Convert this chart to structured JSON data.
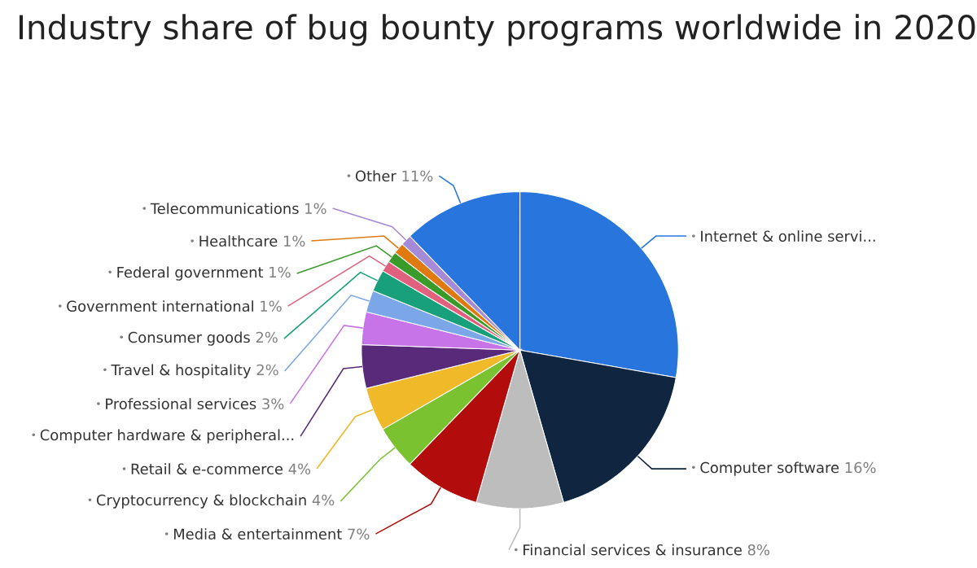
{
  "chart_data": {
    "type": "pie",
    "title": "Industry share of bug bounty programs worldwide in 2020",
    "categories": [
      "Internet & online servi...",
      "Computer software",
      "Financial services & insurance",
      "Media & entertainment",
      "Cryptocurrency & blockchain",
      "Retail & e-commerce",
      "Computer hardware & peripheral...",
      "Professional services",
      "Travel & hospitality",
      "Consumer goods",
      "Government international",
      "Federal government",
      "Healthcare",
      "Telecommunications",
      "Other"
    ],
    "values": [
      25,
      16,
      8,
      7,
      4,
      4,
      4,
      3,
      2,
      2,
      1,
      1,
      1,
      1,
      11
    ],
    "value_labels": [
      null,
      "16%",
      "8%",
      "7%",
      "4%",
      "4%",
      null,
      "3%",
      "2%",
      "2%",
      "1%",
      "1%",
      "1%",
      "1%",
      "11%"
    ],
    "colors": [
      "#2876dd",
      "#0f2540",
      "#bdbdbd",
      "#b30c0c",
      "#7ac230",
      "#f0b92a",
      "#5a2a7a",
      "#c774e8",
      "#7ba7e8",
      "#17a07a",
      "#e0607e",
      "#3a9a2a",
      "#e07a10",
      "#a58ad8",
      "#2876dd"
    ]
  }
}
